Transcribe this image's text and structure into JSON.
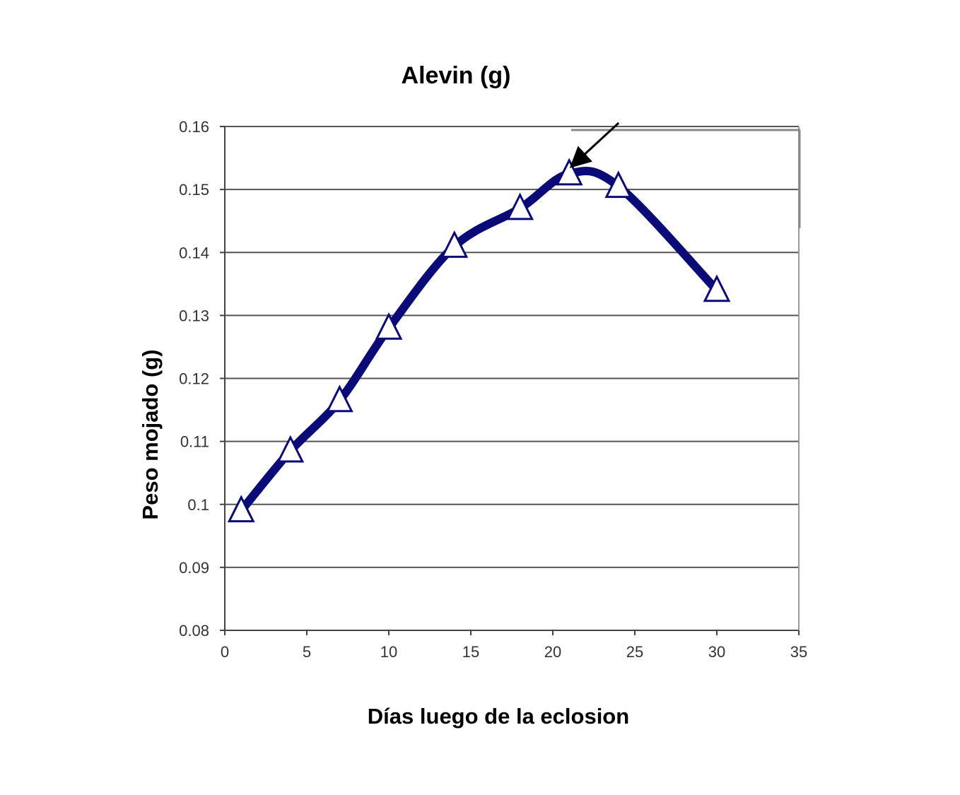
{
  "chart_data": {
    "type": "line",
    "title": "Alevin (g)",
    "xlabel": "Días luego de la eclosion",
    "ylabel": "Peso mojado (g)",
    "xlim": [
      0,
      35
    ],
    "ylim": [
      0.08,
      0.16
    ],
    "x_ticks": [
      "0",
      "5",
      "10",
      "15",
      "20",
      "25",
      "30",
      "35"
    ],
    "y_ticks": [
      "0.08",
      "0.09",
      "0.1",
      "0.11",
      "0.12",
      "0.13",
      "0.14",
      "0.15",
      "0.16"
    ],
    "x_tick_values": [
      0,
      5,
      10,
      15,
      20,
      25,
      30,
      35
    ],
    "y_tick_values": [
      0.08,
      0.09,
      0.1,
      0.11,
      0.12,
      0.13,
      0.14,
      0.15,
      0.16
    ],
    "grid": "horizontal",
    "marker": "triangle",
    "series": [
      {
        "x": [
          1,
          4,
          7,
          10,
          14,
          18,
          21,
          24,
          30
        ],
        "y": [
          0.099,
          0.1085,
          0.1165,
          0.128,
          0.141,
          0.147,
          0.1525,
          0.1505,
          0.134
        ],
        "color": "#0a0a78"
      }
    ],
    "annotation": {
      "type": "arrow",
      "points_to_x": 21,
      "points_to_y": 0.1525
    }
  }
}
